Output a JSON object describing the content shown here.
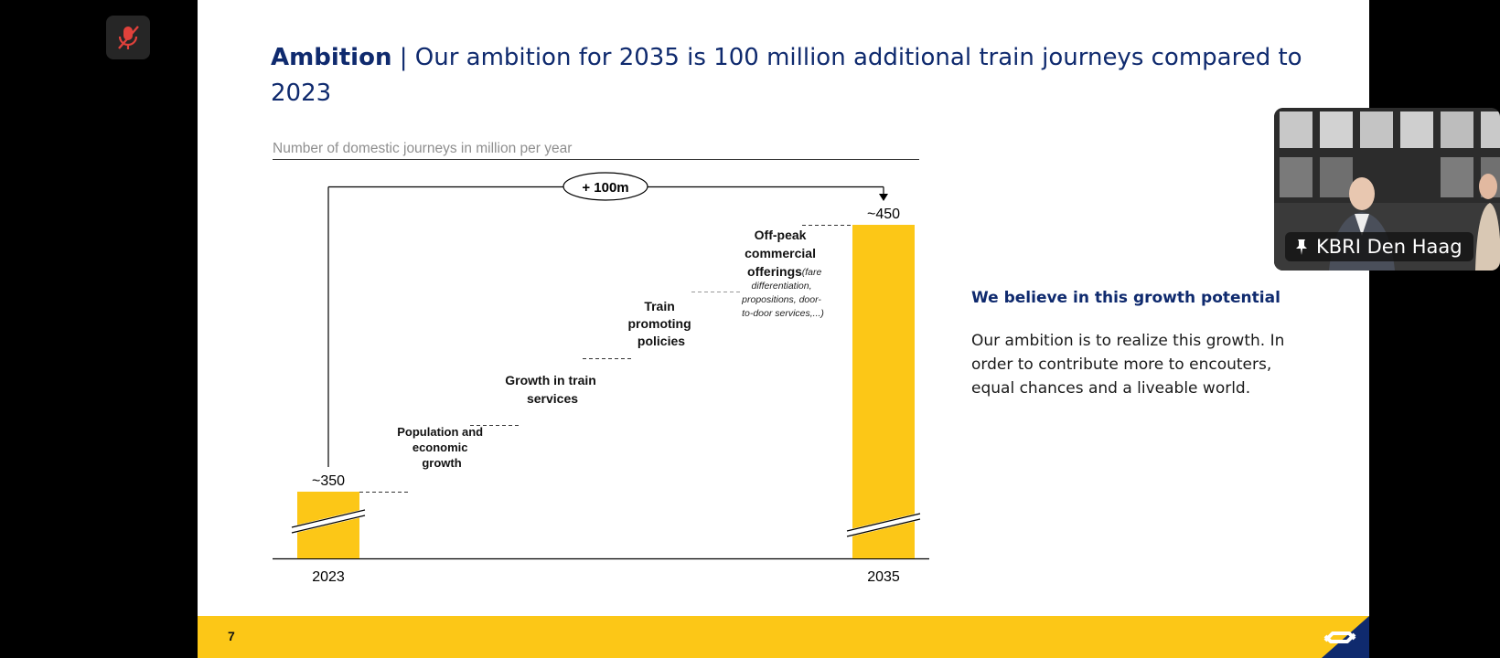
{
  "toolbar": {
    "mic_icon": "mic-muted-icon",
    "mic_color": "#e0413b"
  },
  "slide": {
    "title_bold": "Ambition",
    "title_sep": " | ",
    "title_rest": "Our ambition for 2035 is 100 million additional train journeys compared to 2023",
    "subtitle": "Number of domestic journeys in million per year",
    "page_number": "7",
    "text_heading": "We believe in this growth potential",
    "text_body": "Our ambition is to realize this growth. In order to contribute more to encouters, equal chances and a liveable world.",
    "colors": {
      "accent": "#fcc717",
      "title": "#0f2a6e",
      "footer": "#fcc717"
    }
  },
  "chart_data": {
    "type": "bar",
    "categories": [
      "2023",
      "2035"
    ],
    "values": [
      350,
      450
    ],
    "value_labels": [
      "~350",
      "~450"
    ],
    "difference_label": "+ 100m",
    "drivers": [
      {
        "lines": [
          "Population and",
          "economic",
          "growth"
        ]
      },
      {
        "lines": [
          "Growth in train",
          "services"
        ]
      },
      {
        "lines": [
          "Train",
          "promoting",
          "policies"
        ]
      },
      {
        "lines": [
          "Off-peak",
          "commercial",
          "offerings"
        ],
        "note_lines": [
          "(fare",
          "differentiation,",
          "propositions, door-",
          "to-door services,...)"
        ]
      }
    ]
  },
  "video": {
    "participant_name": "KBRI Den Haag",
    "pin_icon": "pin-icon"
  }
}
